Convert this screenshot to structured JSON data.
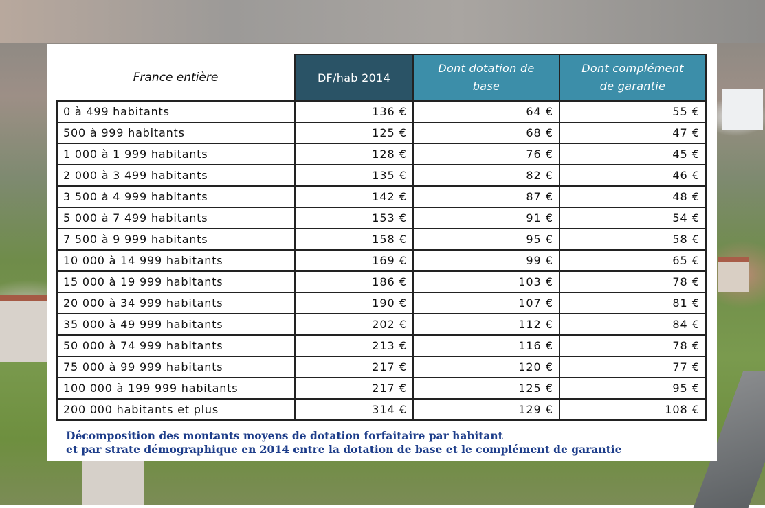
{
  "chart_data": {
    "type": "table",
    "columns": [
      "France entière",
      "DF/hab 2014",
      "Dont dotation de base",
      "Dont complément de garantie"
    ],
    "rows": [
      {
        "strate": "0 à 499 habitants",
        "df": "136 €",
        "base": "64 €",
        "garantie": "55 €"
      },
      {
        "strate": "500 à 999 habitants",
        "df": "125 €",
        "base": "68 €",
        "garantie": "47 €"
      },
      {
        "strate": "1 000 à 1 999 habitants",
        "df": "128 €",
        "base": "76 €",
        "garantie": "45 €"
      },
      {
        "strate": "2 000 à 3 499 habitants",
        "df": "135 €",
        "base": "82 €",
        "garantie": "46 €"
      },
      {
        "strate": "3 500 à 4 999 habitants",
        "df": "142 €",
        "base": "87 €",
        "garantie": "48 €"
      },
      {
        "strate": "5 000 à 7 499 habitants",
        "df": "153 €",
        "base": "91 €",
        "garantie": "54 €"
      },
      {
        "strate": "7 500 à 9 999 habitants",
        "df": "158 €",
        "base": "95 €",
        "garantie": "58 €"
      },
      {
        "strate": "10 000 à 14 999 habitants",
        "df": "169 €",
        "base": "99 €",
        "garantie": "65 €"
      },
      {
        "strate": "15 000 à 19 999 habitants",
        "df": "186 €",
        "base": "103 €",
        "garantie": "78 €"
      },
      {
        "strate": "20 000 à 34 999 habitants",
        "df": "190 €",
        "base": "107 €",
        "garantie": "81 €"
      },
      {
        "strate": "35 000 à 49 999 habitants",
        "df": "202 €",
        "base": "112 €",
        "garantie": "84 €"
      },
      {
        "strate": "50 000 à 74 999 habitants",
        "df": "213 €",
        "base": "116 €",
        "garantie": "78 €"
      },
      {
        "strate": "75 000 à 99 999 habitants",
        "df": "217 €",
        "base": "120 €",
        "garantie": "77 €"
      },
      {
        "strate": "100 000 à 199 999 habitants",
        "df": "217 €",
        "base": "125 €",
        "garantie": "95 €"
      },
      {
        "strate": "200 000 habitants et plus",
        "df": "314 €",
        "base": "129 €",
        "garantie": "108 €"
      }
    ],
    "caption_lines": [
      "Décomposition des montants moyens de dotation forfaitaire par habitant",
      "et par strate démographique en 2014 entre la dotation de base et le complément de garantie"
    ]
  },
  "header": {
    "col1": "France entière",
    "col2": "DF/hab 2014",
    "col3_line1": "Dont dotation de",
    "col3_line2": "base",
    "col4_line1": "Dont complément",
    "col4_line2": "de garantie"
  },
  "colors": {
    "header_dark": "#2a5366",
    "header_teal": "#3c8ea9",
    "caption": "#1d3d8a"
  }
}
